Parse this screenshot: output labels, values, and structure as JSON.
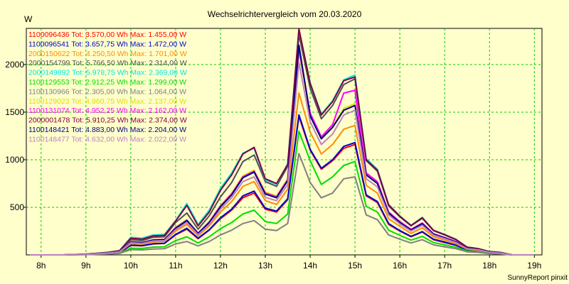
{
  "chart_data": {
    "type": "line",
    "title": "Wechselrichtervergleich vom 20.03.2020",
    "ylabel": "W",
    "xlabel": "",
    "credit": "SunnyReport pinxit",
    "xlim": [
      7.67,
      19.17
    ],
    "ylim": [
      0,
      2380
    ],
    "yticks": [
      500,
      1000,
      1500,
      2000
    ],
    "xticks": [
      8,
      9,
      10,
      11,
      12,
      13,
      14,
      15,
      16,
      17,
      18,
      19
    ],
    "xtick_labels": [
      "8h",
      "9h",
      "10h",
      "11h",
      "12h",
      "13h",
      "14h",
      "15h",
      "16h",
      "17h",
      "18h",
      "19h"
    ],
    "grid": true,
    "legend_position": "top-left",
    "x": [
      7.75,
      8.0,
      8.25,
      8.5,
      8.75,
      9.0,
      9.25,
      9.5,
      9.75,
      10.0,
      10.25,
      10.5,
      10.75,
      11.0,
      11.25,
      11.5,
      11.75,
      12.0,
      12.25,
      12.5,
      12.75,
      13.0,
      13.25,
      13.5,
      13.75,
      14.0,
      14.25,
      14.5,
      14.75,
      15.0,
      15.25,
      15.5,
      15.75,
      16.0,
      16.25,
      16.5,
      16.75,
      17.0,
      17.25,
      17.5,
      17.75,
      18.0,
      18.25,
      18.5,
      18.75,
      19.0
    ],
    "series": [
      {
        "name": "1100096436",
        "legend": "1100096436 Tot: 3.570,00 Wh Max: 1.455,00 W",
        "color": "#FF0000",
        "values": [
          0,
          0,
          0,
          0,
          2,
          5,
          10,
          15,
          25,
          100,
          95,
          115,
          120,
          210,
          270,
          170,
          260,
          380,
          470,
          600,
          650,
          480,
          450,
          580,
          1455,
          1100,
          900,
          990,
          1120,
          1160,
          620,
          550,
          320,
          250,
          190,
          240,
          160,
          130,
          100,
          50,
          40,
          22,
          15,
          0,
          0,
          0
        ]
      },
      {
        "name": "1100096541",
        "legend": "1100096541 Tot: 3.657,75 Wh Max: 1.472,00 W",
        "color": "#0000CC",
        "values": [
          0,
          0,
          0,
          0,
          2,
          5,
          10,
          15,
          25,
          102,
          97,
          117,
          122,
          215,
          280,
          175,
          265,
          390,
          480,
          620,
          670,
          490,
          460,
          590,
          1472,
          1110,
          910,
          1000,
          1140,
          1180,
          630,
          560,
          330,
          255,
          195,
          245,
          165,
          135,
          102,
          52,
          42,
          23,
          16,
          0,
          0,
          0
        ]
      },
      {
        "name": "2000150622",
        "legend": "2000150622 Tot: 4.250,50 Wh Max: 1.701,00 W",
        "color": "#FF8C00",
        "values": [
          0,
          0,
          0,
          0,
          3,
          6,
          12,
          18,
          30,
          118,
          112,
          135,
          142,
          250,
          320,
          200,
          305,
          450,
          560,
          720,
          770,
          570,
          530,
          690,
          1701,
          1290,
          1060,
          1160,
          1320,
          1360,
          730,
          650,
          380,
          300,
          225,
          285,
          190,
          155,
          118,
          60,
          48,
          26,
          18,
          0,
          0,
          0
        ]
      },
      {
        "name": "2000154799",
        "legend": "2000154799 Tot: 5.766,50 Wh Max: 2.314,00 W",
        "color": "#505050",
        "values": [
          0,
          0,
          0,
          0,
          4,
          8,
          16,
          25,
          40,
          160,
          150,
          185,
          190,
          340,
          440,
          270,
          410,
          610,
          760,
          980,
          1050,
          770,
          720,
          930,
          2314,
          1750,
          1430,
          1570,
          1790,
          1850,
          990,
          880,
          515,
          400,
          305,
          385,
          255,
          210,
          160,
          80,
          65,
          35,
          25,
          0,
          0,
          0
        ]
      },
      {
        "name": "2000149892",
        "legend": "2000149892 Tot: 5.978,75 Wh Max: 2.369,00 W",
        "color": "#00E5E5",
        "values": [
          0,
          0,
          0,
          0,
          4,
          8,
          18,
          28,
          45,
          185,
          175,
          210,
          215,
          360,
          540,
          320,
          470,
          700,
          860,
          1070,
          1120,
          790,
          740,
          960,
          2369,
          1810,
          1480,
          1620,
          1840,
          1890,
          1010,
          900,
          530,
          410,
          310,
          395,
          260,
          215,
          165,
          82,
          66,
          36,
          25,
          0,
          0,
          0
        ]
      },
      {
        "name": "1100129553",
        "legend": "1100129553 Tot: 2.912,25 Wh Max: 1.299,00 W",
        "color": "#00DD00",
        "values": [
          0,
          0,
          0,
          0,
          2,
          4,
          8,
          12,
          20,
          70,
          68,
          82,
          85,
          150,
          190,
          125,
          190,
          275,
          340,
          430,
          470,
          350,
          330,
          430,
          1299,
          990,
          740,
          820,
          940,
          980,
          510,
          450,
          260,
          205,
          155,
          195,
          130,
          105,
          80,
          40,
          32,
          18,
          12,
          0,
          0,
          0
        ]
      },
      {
        "name": "1100130966",
        "legend": "1100130966 Tot: 2.305,00 Wh Max: 1.064,00 W",
        "color": "#808080",
        "values": [
          0,
          0,
          0,
          0,
          1,
          3,
          6,
          10,
          16,
          55,
          52,
          62,
          65,
          115,
          140,
          95,
          140,
          210,
          260,
          330,
          360,
          270,
          255,
          330,
          1064,
          760,
          600,
          650,
          800,
          820,
          420,
          370,
          210,
          165,
          125,
          160,
          105,
          85,
          65,
          32,
          26,
          14,
          10,
          0,
          0,
          0
        ]
      },
      {
        "name": "1100129023",
        "legend": "1100129023 Tot: 4.960,75 Wh Max: 2.137,00 W",
        "color": "#DDDD00",
        "values": [
          0,
          0,
          0,
          0,
          3,
          7,
          14,
          22,
          35,
          140,
          132,
          160,
          165,
          290,
          370,
          230,
          350,
          520,
          650,
          830,
          890,
          660,
          620,
          800,
          2137,
          1480,
          1230,
          1350,
          1540,
          1590,
          850,
          760,
          445,
          345,
          265,
          330,
          220,
          180,
          138,
          70,
          56,
          30,
          21,
          0,
          0,
          0
        ]
      },
      {
        "name": "1100131074",
        "legend": "1100131074 Tot: 4.952,25 Wh Max: 2.162,00 W",
        "color": "#FF00FF",
        "values": [
          0,
          0,
          0,
          0,
          3,
          7,
          14,
          22,
          35,
          138,
          130,
          158,
          162,
          285,
          365,
          228,
          345,
          515,
          640,
          820,
          880,
          650,
          610,
          790,
          2162,
          1490,
          1240,
          1370,
          1700,
          1730,
          860,
          770,
          450,
          350,
          268,
          335,
          222,
          182,
          140,
          71,
          57,
          31,
          21,
          0,
          0,
          0
        ]
      },
      {
        "name": "2000001478",
        "legend": "2000001478 Tot: 5.910,25 Wh Max: 2.374,00 W",
        "color": "#800040",
        "values": [
          0,
          0,
          0,
          0,
          4,
          8,
          17,
          27,
          44,
          175,
          165,
          200,
          205,
          355,
          520,
          305,
          450,
          680,
          840,
          1060,
          1130,
          800,
          750,
          950,
          2374,
          1800,
          1470,
          1610,
          1830,
          1870,
          1000,
          890,
          525,
          405,
          308,
          390,
          258,
          212,
          162,
          81,
          65,
          35,
          25,
          0,
          0,
          0
        ]
      },
      {
        "name": "1100148421",
        "legend": "1100148421 Tot: 4.883,00 Wh Max: 2.204,00 W",
        "color": "#000080",
        "values": [
          0,
          0,
          0,
          0,
          3,
          7,
          14,
          22,
          34,
          136,
          128,
          155,
          160,
          280,
          360,
          225,
          340,
          505,
          630,
          810,
          870,
          640,
          600,
          780,
          2204,
          1460,
          1220,
          1340,
          1520,
          1570,
          840,
          750,
          440,
          340,
          262,
          328,
          218,
          178,
          136,
          69,
          55,
          30,
          20,
          0,
          0,
          0
        ]
      },
      {
        "name": "1100148477",
        "legend": "1100148477 Tot: 4.632,00 Wh Max: 2.022,00 W",
        "color": "#C080C0",
        "values": [
          0,
          0,
          0,
          0,
          3,
          6,
          13,
          20,
          32,
          128,
          120,
          146,
          150,
          265,
          340,
          212,
          320,
          480,
          600,
          770,
          820,
          605,
          570,
          740,
          2022,
          1400,
          1160,
          1270,
          1470,
          1520,
          800,
          715,
          420,
          325,
          250,
          312,
          208,
          170,
          130,
          66,
          53,
          28,
          19,
          0,
          0,
          0
        ]
      }
    ]
  }
}
